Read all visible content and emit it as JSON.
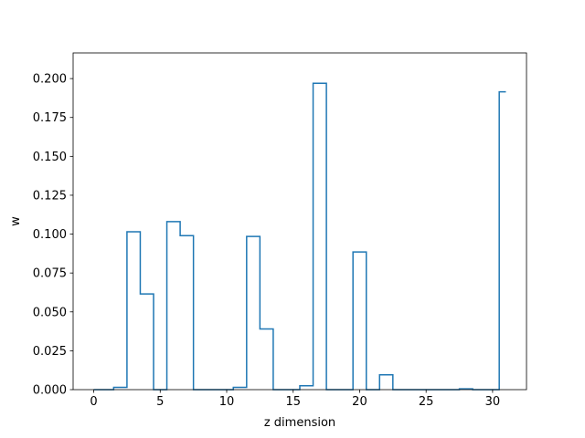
{
  "chart_data": {
    "type": "line",
    "style": "steps-mid",
    "title": "",
    "xlabel": "z dimension",
    "ylabel": "w",
    "xlim": [
      -1.55,
      32.55
    ],
    "ylim": [
      0,
      0.2165
    ],
    "xticks": [
      "0",
      "5",
      "10",
      "15",
      "20",
      "25",
      "30"
    ],
    "yticks": [
      "0.000",
      "0.025",
      "0.050",
      "0.075",
      "0.100",
      "0.125",
      "0.150",
      "0.175",
      "0.200"
    ],
    "grid": false,
    "line_color": "#1f77b4",
    "series": [
      {
        "x": [
          0,
          1,
          2,
          3,
          4,
          5,
          6,
          7,
          8,
          9,
          10,
          11,
          12,
          13,
          14,
          15,
          16,
          17,
          18,
          19,
          20,
          21,
          22,
          23,
          24,
          25,
          26,
          27,
          28,
          29,
          30,
          31
        ],
        "values": [
          0,
          0,
          0.0015,
          0.1015,
          0.0615,
          0,
          0.108,
          0.099,
          0,
          0,
          0,
          0.0015,
          0.0985,
          0.039,
          0,
          0,
          0.0025,
          0.197,
          0,
          0,
          0.0885,
          0,
          0.0095,
          0,
          0,
          0,
          0,
          0,
          0.0005,
          0,
          0,
          0.1915
        ]
      }
    ]
  }
}
